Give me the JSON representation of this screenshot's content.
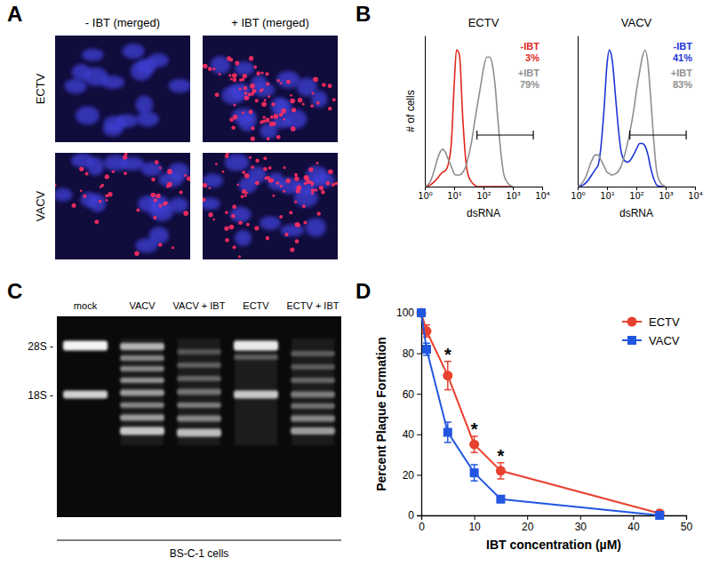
{
  "panel_labels": [
    "A",
    "B",
    "C",
    "D"
  ],
  "micrographs": {
    "columns": [
      "- IBT (merged)",
      "+ IBT (merged)"
    ],
    "rows": [
      "ECTV",
      "VACV"
    ]
  },
  "gel": {
    "lanes": [
      "mock",
      "VACV",
      "VACV + IBT",
      "ECTV",
      "ECTV + IBT"
    ],
    "markers": [
      "28S -",
      "18S -"
    ],
    "caption": "BS-C-1 cells"
  },
  "chart_data": [
    {
      "type": "line",
      "title": "ECTV",
      "x_label": "dsRNA",
      "y_label": "# of cells",
      "log": "x",
      "tick_labels": "x",
      "xlim": [
        1,
        10000
      ],
      "xticks": [
        {
          "value": 1,
          "label": "10⁰"
        },
        {
          "value": 10,
          "label": "10¹"
        },
        {
          "value": 100,
          "label": "10²"
        },
        {
          "value": 1000,
          "label": "10³"
        },
        {
          "value": 10000,
          "label": "10⁴"
        }
      ],
      "ylim": [
        0,
        105
      ],
      "yticks": [],
      "x": [
        1,
        1.5,
        2,
        3,
        4,
        5,
        6,
        8,
        10,
        12,
        15,
        20,
        25,
        30,
        40,
        50,
        60,
        80,
        100,
        130,
        160,
        200,
        250,
        300,
        400,
        500,
        700,
        1000
      ],
      "gate": [
        60,
        5000
      ],
      "series": [
        {
          "name": "-IBT",
          "color": "#e0261c",
          "gated_label": "3%",
          "values": [
            0,
            1,
            3,
            7,
            10,
            11,
            14,
            30,
            70,
            95,
            92,
            45,
            18,
            8,
            3,
            1,
            0,
            0,
            0,
            0,
            0,
            0,
            0,
            0,
            0,
            0,
            0,
            0
          ]
        },
        {
          "name": "+IBT",
          "color": "#8f8f8f",
          "gated_label": "79%",
          "values": [
            0,
            3,
            10,
            22,
            26,
            24,
            20,
            14,
            9,
            8,
            8,
            10,
            14,
            20,
            32,
            45,
            55,
            70,
            82,
            90,
            90,
            85,
            70,
            50,
            22,
            8,
            2,
            0
          ]
        }
      ]
    },
    {
      "type": "line",
      "title": "VACV",
      "x_label": "dsRNA",
      "log": "x",
      "tick_labels": "x",
      "xlim": [
        1,
        10000
      ],
      "xticks": [
        {
          "value": 1,
          "label": "10⁰"
        },
        {
          "value": 10,
          "label": "10¹"
        },
        {
          "value": 100,
          "label": "10²"
        },
        {
          "value": 1000,
          "label": "10³"
        },
        {
          "value": 10000,
          "label": "10⁴"
        }
      ],
      "ylim": [
        0,
        105
      ],
      "yticks": [],
      "x": [
        1,
        1.5,
        2,
        3,
        4,
        5,
        6,
        8,
        10,
        12,
        15,
        20,
        25,
        30,
        40,
        50,
        60,
        80,
        100,
        130,
        160,
        200,
        250,
        300,
        400,
        500,
        700,
        1000
      ],
      "gate": [
        60,
        5000
      ],
      "series": [
        {
          "name": "-IBT",
          "color": "#1c35d6",
          "gated_label": "41%",
          "values": [
            0,
            1,
            3,
            8,
            12,
            15,
            25,
            55,
            85,
            95,
            88,
            60,
            38,
            25,
            18,
            17,
            18,
            22,
            26,
            30,
            30,
            28,
            22,
            14,
            5,
            1,
            0,
            0
          ]
        },
        {
          "name": "+IBT",
          "color": "#8f8f8f",
          "gated_label": "83%",
          "values": [
            0,
            3,
            8,
            18,
            22,
            22,
            19,
            14,
            10,
            9,
            8,
            9,
            11,
            14,
            22,
            30,
            38,
            52,
            66,
            80,
            90,
            95,
            85,
            65,
            30,
            10,
            2,
            0
          ]
        }
      ]
    },
    {
      "type": "line",
      "x_label": "IBT concentration (µM)",
      "y_label": "Percent Plaque Formation",
      "legend": "upper right",
      "xlim": [
        0,
        50
      ],
      "xticks": [
        0,
        10,
        20,
        30,
        40,
        50
      ],
      "ylim": [
        0,
        100
      ],
      "yticks": [
        0,
        20,
        40,
        60,
        80,
        100
      ],
      "x": [
        0,
        1,
        5,
        10,
        15,
        45
      ],
      "series": [
        {
          "name": "ECTV",
          "color": "#e8412f",
          "marker": "circle",
          "values": [
            100,
            91,
            69,
            35,
            22,
            1
          ],
          "errors": [
            0,
            3,
            7,
            4,
            4,
            1
          ]
        },
        {
          "name": "VACV",
          "color": "#2157e0",
          "marker": "square",
          "values": [
            100,
            82,
            41,
            21,
            8,
            0
          ],
          "errors": [
            0,
            3,
            5,
            4,
            1.5,
            0
          ]
        }
      ],
      "annotations": [
        {
          "text": "*",
          "x": 5,
          "y": 80
        },
        {
          "text": "*",
          "x": 10,
          "y": 43
        },
        {
          "text": "*",
          "x": 15,
          "y": 30
        }
      ]
    }
  ]
}
